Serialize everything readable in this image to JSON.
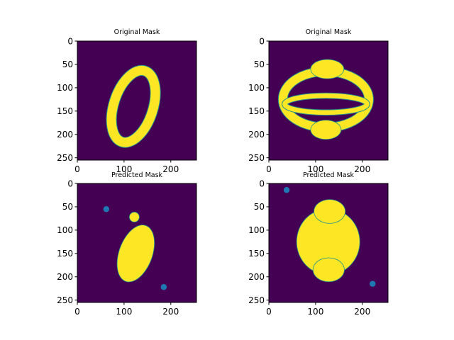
{
  "figure": {
    "background": "#ffffff"
  },
  "colors": {
    "mask_background": "#440154",
    "mask_foreground": "#fde725",
    "mask_edge": "#21918c",
    "marker": "#1f77b4"
  },
  "chart_data": [
    {
      "type": "heatmap",
      "title": "Original Mask",
      "xlabel": "",
      "ylabel": "",
      "xlim": [
        0,
        255
      ],
      "ylim": [
        255,
        0
      ],
      "xticks": [
        0,
        100,
        200
      ],
      "yticks": [
        0,
        50,
        100,
        150,
        200,
        250
      ],
      "shape": "ellipse-ring",
      "mask_regions": [
        {
          "kind": "ring",
          "cx": 120,
          "cy": 140,
          "rx": 42,
          "ry": 80,
          "rotation_deg": 18,
          "thickness": 20
        }
      ],
      "points": []
    },
    {
      "type": "heatmap",
      "title": "Original Mask",
      "xlabel": "",
      "ylabel": "",
      "xlim": [
        0,
        255
      ],
      "ylim": [
        255,
        0
      ],
      "xticks": [
        0,
        100,
        200
      ],
      "yticks": [
        0,
        50,
        100,
        150,
        200,
        250
      ],
      "shape": "stacked-rings",
      "mask_regions": [
        {
          "kind": "ring",
          "cx": 122,
          "cy": 125,
          "rx": 92,
          "ry": 60,
          "rotation_deg": 0,
          "thickness": 18
        },
        {
          "kind": "ring",
          "cx": 122,
          "cy": 135,
          "rx": 88,
          "ry": 18,
          "rotation_deg": 0,
          "thickness": 10
        },
        {
          "kind": "blob",
          "cx": 125,
          "cy": 60,
          "rx": 35,
          "ry": 20,
          "rotation_deg": 0
        },
        {
          "kind": "blob",
          "cx": 122,
          "cy": 190,
          "rx": 32,
          "ry": 20,
          "rotation_deg": 0
        }
      ],
      "points": []
    },
    {
      "type": "heatmap",
      "title": "Predicted Mask",
      "xlabel": "",
      "ylabel": "",
      "xlim": [
        0,
        255
      ],
      "ylim": [
        255,
        0
      ],
      "xticks": [
        0,
        100,
        200
      ],
      "yticks": [
        0,
        50,
        100,
        150,
        200,
        250
      ],
      "shape": "filled-ellipse",
      "mask_regions": [
        {
          "kind": "blob",
          "cx": 125,
          "cy": 150,
          "rx": 35,
          "ry": 63,
          "rotation_deg": 20
        },
        {
          "kind": "blob",
          "cx": 122,
          "cy": 72,
          "rx": 10,
          "ry": 10,
          "rotation_deg": 0
        }
      ],
      "points": [
        {
          "x": 62,
          "y": 55
        },
        {
          "x": 185,
          "y": 222
        }
      ]
    },
    {
      "type": "heatmap",
      "title": "Predicted Mask",
      "xlabel": "",
      "ylabel": "",
      "xlim": [
        0,
        255
      ],
      "ylim": [
        255,
        0
      ],
      "xticks": [
        0,
        100,
        200
      ],
      "yticks": [
        0,
        50,
        100,
        150,
        200,
        250
      ],
      "shape": "filled-blob",
      "mask_regions": [
        {
          "kind": "blob",
          "cx": 127,
          "cy": 125,
          "rx": 67,
          "ry": 70,
          "rotation_deg": 0
        },
        {
          "kind": "blob",
          "cx": 130,
          "cy": 60,
          "rx": 33,
          "ry": 25,
          "rotation_deg": 0
        },
        {
          "kind": "blob",
          "cx": 128,
          "cy": 185,
          "rx": 33,
          "ry": 25,
          "rotation_deg": 0
        }
      ],
      "points": [
        {
          "x": 38,
          "y": 14
        },
        {
          "x": 222,
          "y": 215
        }
      ]
    }
  ]
}
